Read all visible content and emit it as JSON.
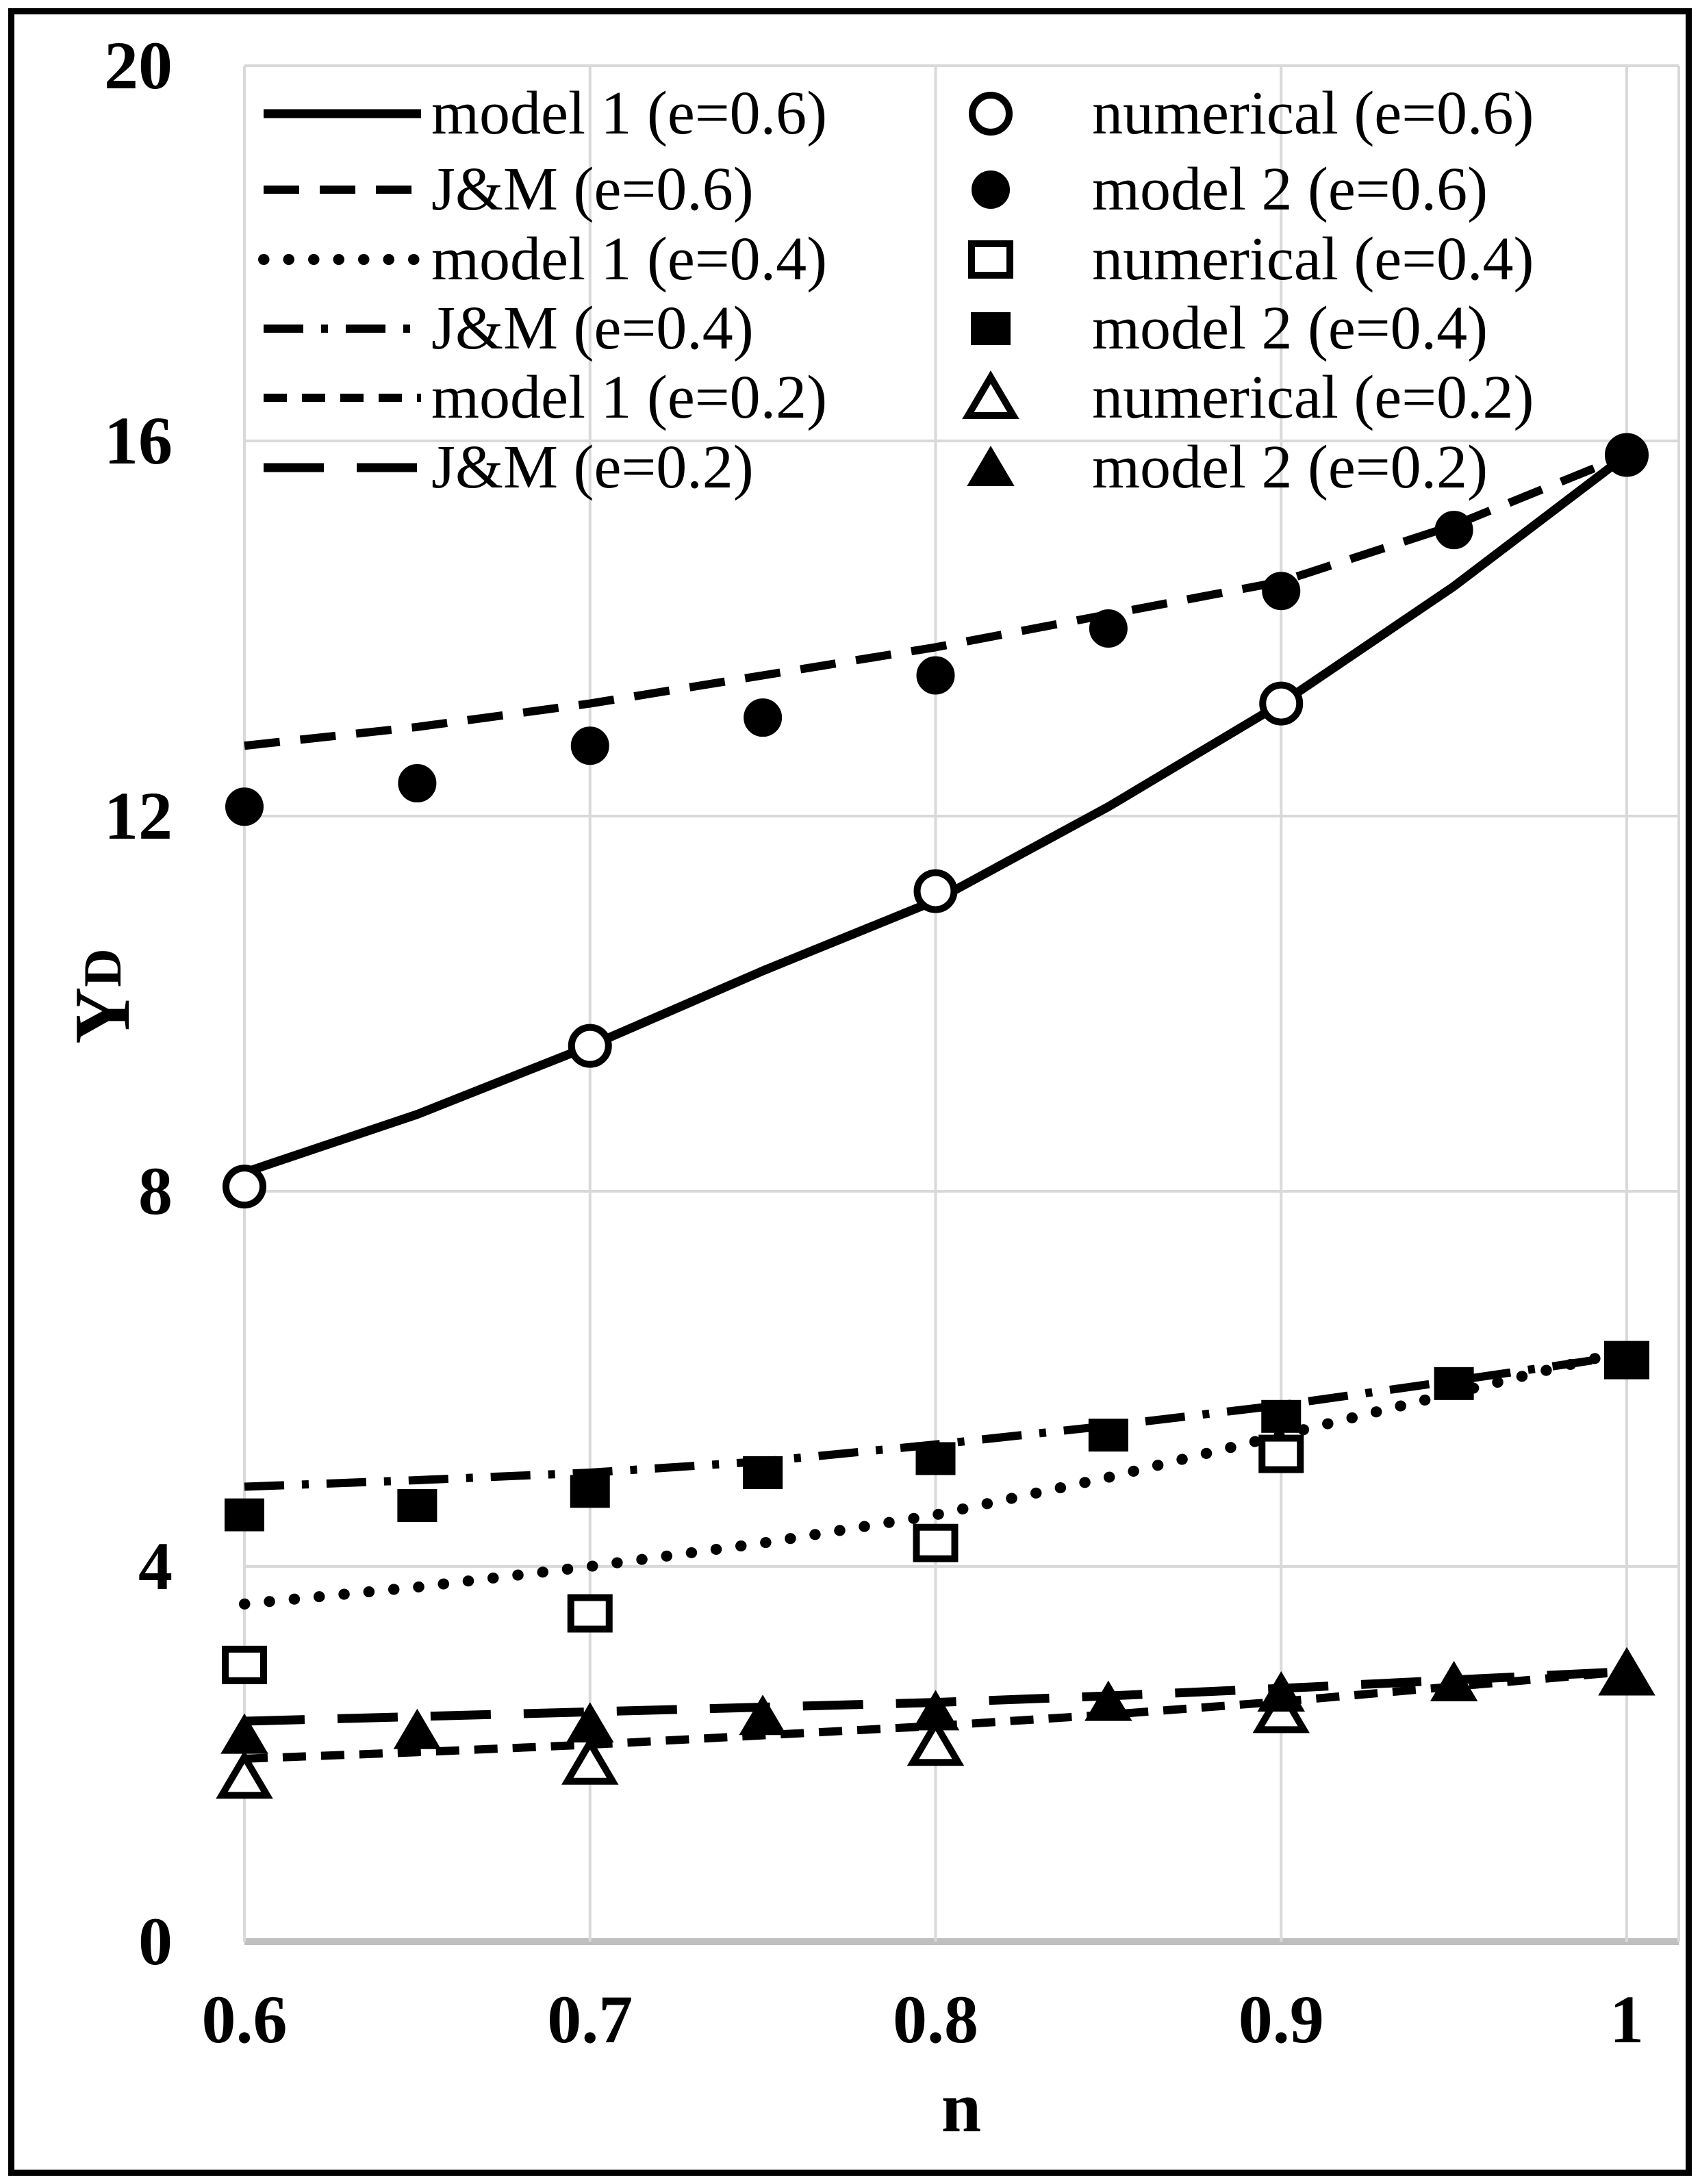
{
  "figure": {
    "background": "#ffffff",
    "border_color": "#000000",
    "text_color": "#000000"
  },
  "chart_data": {
    "type": "line",
    "title": "",
    "xlabel": "n",
    "ylabel_base": "Y",
    "ylabel_sub": "D",
    "xlim": [
      0.6,
      1.0
    ],
    "ylim": [
      0,
      20
    ],
    "grid": true,
    "gridline_color": "#d9d9d9",
    "axis_line_color": "#bfbfbf",
    "xtick_values": [
      0.6,
      0.7,
      0.8,
      0.9,
      1.0
    ],
    "xtick_labels": [
      "0.6",
      "0.7",
      "0.8",
      "0.9",
      "1"
    ],
    "ytick_values": [
      0,
      4,
      8,
      12,
      16,
      20
    ],
    "ytick_labels": [
      "0",
      "4",
      "8",
      "12",
      "16",
      "20"
    ],
    "legend_position": "top-left, two columns, transparent, no border",
    "series": [
      {
        "id": "model1-e06",
        "label": "model 1 (e=0.6)",
        "kind": "line",
        "style": "solid",
        "x": [
          0.6,
          0.65,
          0.7,
          0.75,
          0.8,
          0.85,
          0.9,
          0.95,
          1.0
        ],
        "y": [
          8.2,
          8.82,
          9.55,
          10.35,
          11.1,
          12.1,
          13.2,
          14.45,
          15.85
        ],
        "legend": {
          "column": "left",
          "row": 0
        }
      },
      {
        "id": "jm-e06",
        "label": "J&M (e=0.6)",
        "kind": "line",
        "style": "dash",
        "x": [
          0.6,
          0.65,
          0.7,
          0.75,
          0.8,
          0.85,
          0.9,
          0.95,
          1.0
        ],
        "y": [
          12.75,
          12.95,
          13.2,
          13.5,
          13.8,
          14.15,
          14.5,
          15.1,
          15.85
        ],
        "legend": {
          "column": "left",
          "row": 1
        }
      },
      {
        "id": "model1-e04",
        "label": "model 1 (e=0.4)",
        "kind": "line",
        "style": "dot",
        "x": [
          0.6,
          0.65,
          0.7,
          0.75,
          0.8,
          0.85,
          0.9,
          0.95,
          1.0
        ],
        "y": [
          3.6,
          3.78,
          4.0,
          4.25,
          4.55,
          4.95,
          5.4,
          5.85,
          6.3
        ],
        "legend": {
          "column": "left",
          "row": 2
        }
      },
      {
        "id": "jm-e04",
        "label": "J&M (e=0.4)",
        "kind": "line",
        "style": "dashdot",
        "x": [
          0.6,
          0.65,
          0.7,
          0.75,
          0.8,
          0.85,
          0.9,
          0.95,
          1.0
        ],
        "y": [
          4.85,
          4.92,
          5.0,
          5.12,
          5.3,
          5.5,
          5.72,
          5.98,
          6.25
        ],
        "legend": {
          "column": "left",
          "row": 3
        }
      },
      {
        "id": "model1-e02",
        "label": "model 1 (e=0.2)",
        "kind": "line",
        "style": "shortdash",
        "x": [
          0.6,
          0.65,
          0.7,
          0.75,
          0.8,
          0.85,
          0.9,
          0.95,
          1.0
        ],
        "y": [
          1.95,
          2.02,
          2.1,
          2.2,
          2.3,
          2.42,
          2.56,
          2.72,
          2.88
        ],
        "legend": {
          "column": "left",
          "row": 4
        }
      },
      {
        "id": "jm-e02",
        "label": "J&M (e=0.2)",
        "kind": "line",
        "style": "longdash",
        "x": [
          0.6,
          0.65,
          0.7,
          0.75,
          0.8,
          0.85,
          0.9,
          0.95,
          1.0
        ],
        "y": [
          2.35,
          2.4,
          2.45,
          2.5,
          2.55,
          2.62,
          2.7,
          2.79,
          2.88
        ],
        "legend": {
          "column": "left",
          "row": 5
        }
      },
      {
        "id": "numerical-e06",
        "label": "numerical (e=0.6)",
        "kind": "scatter",
        "marker": "circle",
        "fill": "open",
        "x": [
          0.6,
          0.7,
          0.8,
          0.9,
          1.0
        ],
        "y": [
          8.05,
          9.55,
          11.2,
          13.2,
          15.85
        ],
        "legend": {
          "column": "right",
          "row": 0
        }
      },
      {
        "id": "model2-e06",
        "label": "model 2 (e=0.6)",
        "kind": "scatter",
        "marker": "circle",
        "fill": "filled",
        "x": [
          0.6,
          0.65,
          0.7,
          0.75,
          0.8,
          0.85,
          0.9,
          0.95,
          1.0
        ],
        "y": [
          12.1,
          12.35,
          12.75,
          13.05,
          13.5,
          14.0,
          14.4,
          15.05,
          15.85
        ],
        "legend": {
          "column": "right",
          "row": 1
        }
      },
      {
        "id": "numerical-e04",
        "label": "numerical (e=0.4)",
        "kind": "scatter",
        "marker": "square",
        "fill": "open",
        "x": [
          0.6,
          0.7,
          0.8,
          0.9,
          1.0
        ],
        "y": [
          2.95,
          3.5,
          4.25,
          5.2,
          6.2
        ],
        "legend": {
          "column": "right",
          "row": 2
        }
      },
      {
        "id": "model2-e04",
        "label": "model 2 (e=0.4)",
        "kind": "scatter",
        "marker": "square",
        "fill": "filled",
        "x": [
          0.6,
          0.65,
          0.7,
          0.75,
          0.8,
          0.85,
          0.9,
          0.95,
          1.0
        ],
        "y": [
          4.55,
          4.65,
          4.8,
          5.0,
          5.15,
          5.4,
          5.6,
          5.95,
          6.2
        ],
        "legend": {
          "column": "right",
          "row": 3
        }
      },
      {
        "id": "numerical-e02",
        "label": "numerical (e=0.2)",
        "kind": "scatter",
        "marker": "triangle",
        "fill": "open",
        "x": [
          0.6,
          0.7,
          0.8,
          0.9,
          1.0
        ],
        "y": [
          1.75,
          1.9,
          2.1,
          2.45,
          2.85
        ],
        "legend": {
          "column": "right",
          "row": 4
        }
      },
      {
        "id": "model2-e02",
        "label": "model 2 (e=0.2)",
        "kind": "scatter",
        "marker": "triangle",
        "fill": "filled",
        "x": [
          0.6,
          0.65,
          0.7,
          0.75,
          0.8,
          0.85,
          0.9,
          0.95,
          1.0
        ],
        "y": [
          2.2,
          2.25,
          2.32,
          2.4,
          2.45,
          2.55,
          2.65,
          2.76,
          2.85
        ],
        "legend": {
          "column": "right",
          "row": 5
        }
      }
    ]
  }
}
